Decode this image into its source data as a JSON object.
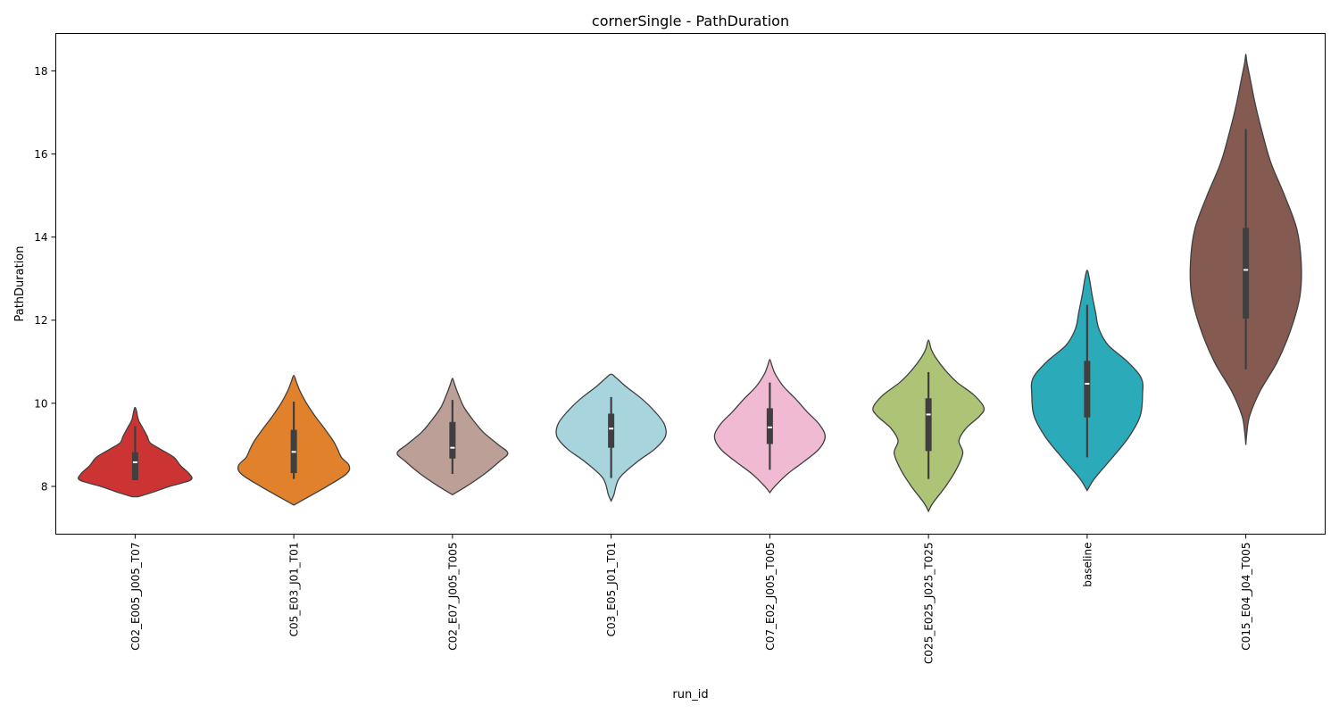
{
  "chart_data": {
    "type": "violin",
    "title": "cornerSingle - PathDuration",
    "xlabel": "run_id",
    "ylabel": "PathDuration",
    "ylim": [
      6.85,
      18.9
    ],
    "yticks": [
      8,
      10,
      12,
      14,
      16,
      18
    ],
    "grid": false,
    "legend": "none",
    "series": [
      {
        "category": "C02_E005_J005_T07",
        "color": "#cc3434",
        "box": {
          "min": 8.15,
          "q1": 8.15,
          "median": 8.58,
          "q3": 8.82,
          "max": 9.45
        },
        "range": [
          7.75,
          9.9
        ],
        "profile": [
          [
            7.75,
            0.05
          ],
          [
            7.85,
            0.3
          ],
          [
            8.0,
            0.62
          ],
          [
            8.15,
            1.0
          ],
          [
            8.3,
            0.98
          ],
          [
            8.5,
            0.82
          ],
          [
            8.7,
            0.7
          ],
          [
            8.9,
            0.45
          ],
          [
            9.05,
            0.27
          ],
          [
            9.2,
            0.22
          ],
          [
            9.4,
            0.14
          ],
          [
            9.6,
            0.06
          ],
          [
            9.9,
            0.0
          ]
        ]
      },
      {
        "category": "C05_E03_J01_T01",
        "color": "#e1812c",
        "box": {
          "min": 8.18,
          "q1": 8.32,
          "median": 8.83,
          "q3": 9.36,
          "max": 10.04
        },
        "range": [
          7.55,
          10.67
        ],
        "profile": [
          [
            7.55,
            0.0
          ],
          [
            7.7,
            0.2
          ],
          [
            8.0,
            0.6
          ],
          [
            8.3,
            0.95
          ],
          [
            8.5,
            1.0
          ],
          [
            8.7,
            0.86
          ],
          [
            8.9,
            0.79
          ],
          [
            9.1,
            0.71
          ],
          [
            9.4,
            0.55
          ],
          [
            9.7,
            0.38
          ],
          [
            10.0,
            0.23
          ],
          [
            10.3,
            0.11
          ],
          [
            10.5,
            0.05
          ],
          [
            10.67,
            0.0
          ]
        ]
      },
      {
        "category": "C02_E07_J005_T005",
        "color": "#bc9f96",
        "box": {
          "min": 8.3,
          "q1": 8.67,
          "median": 8.93,
          "q3": 9.55,
          "max": 10.08
        },
        "range": [
          7.8,
          10.6
        ],
        "profile": [
          [
            7.8,
            0.0
          ],
          [
            8.0,
            0.25
          ],
          [
            8.3,
            0.58
          ],
          [
            8.6,
            0.85
          ],
          [
            8.8,
            1.0
          ],
          [
            9.0,
            0.83
          ],
          [
            9.3,
            0.56
          ],
          [
            9.6,
            0.37
          ],
          [
            9.9,
            0.21
          ],
          [
            10.2,
            0.11
          ],
          [
            10.45,
            0.04
          ],
          [
            10.6,
            0.0
          ]
        ]
      },
      {
        "category": "C03_E05_J01_T01",
        "color": "#a8d4dd",
        "box": {
          "min": 8.2,
          "q1": 8.93,
          "median": 9.39,
          "q3": 9.75,
          "max": 10.15
        },
        "range": [
          7.65,
          10.7
        ],
        "profile": [
          [
            7.65,
            0.0
          ],
          [
            7.8,
            0.05
          ],
          [
            8.2,
            0.15
          ],
          [
            8.6,
            0.48
          ],
          [
            8.9,
            0.79
          ],
          [
            9.2,
            0.98
          ],
          [
            9.5,
            0.96
          ],
          [
            9.8,
            0.79
          ],
          [
            10.1,
            0.56
          ],
          [
            10.4,
            0.27
          ],
          [
            10.6,
            0.1
          ],
          [
            10.7,
            0.0
          ]
        ]
      },
      {
        "category": "C07_E02_J005_T005",
        "color": "#f0bbd2",
        "box": {
          "min": 8.4,
          "q1": 9.02,
          "median": 9.42,
          "q3": 9.88,
          "max": 10.5
        },
        "range": [
          7.85,
          11.05
        ],
        "profile": [
          [
            7.85,
            0.0
          ],
          [
            8.0,
            0.09
          ],
          [
            8.3,
            0.32
          ],
          [
            8.6,
            0.62
          ],
          [
            8.9,
            0.89
          ],
          [
            9.2,
            1.0
          ],
          [
            9.5,
            0.89
          ],
          [
            9.8,
            0.67
          ],
          [
            10.1,
            0.47
          ],
          [
            10.4,
            0.25
          ],
          [
            10.7,
            0.1
          ],
          [
            10.9,
            0.04
          ],
          [
            11.05,
            0.0
          ]
        ]
      },
      {
        "category": "C025_E025_J025_T025",
        "color": "#adc376",
        "box": {
          "min": 8.18,
          "q1": 8.85,
          "median": 9.73,
          "q3": 10.12,
          "max": 10.75
        },
        "range": [
          7.4,
          11.52
        ],
        "profile": [
          [
            7.4,
            0.0
          ],
          [
            7.6,
            0.08
          ],
          [
            8.0,
            0.31
          ],
          [
            8.4,
            0.5
          ],
          [
            8.8,
            0.62
          ],
          [
            9.1,
            0.55
          ],
          [
            9.4,
            0.68
          ],
          [
            9.7,
            0.93
          ],
          [
            9.9,
            1.0
          ],
          [
            10.2,
            0.82
          ],
          [
            10.5,
            0.52
          ],
          [
            10.8,
            0.3
          ],
          [
            11.1,
            0.13
          ],
          [
            11.3,
            0.05
          ],
          [
            11.52,
            0.0
          ]
        ]
      },
      {
        "category": "baseline",
        "color": "#2baab9",
        "box": {
          "min": 8.7,
          "q1": 9.66,
          "median": 10.47,
          "q3": 11.02,
          "max": 12.37
        },
        "range": [
          7.9,
          13.2
        ],
        "profile": [
          [
            7.9,
            0.0
          ],
          [
            8.2,
            0.14
          ],
          [
            8.7,
            0.46
          ],
          [
            9.2,
            0.76
          ],
          [
            9.7,
            0.96
          ],
          [
            10.2,
            1.0
          ],
          [
            10.6,
            0.98
          ],
          [
            11.0,
            0.73
          ],
          [
            11.4,
            0.38
          ],
          [
            11.8,
            0.21
          ],
          [
            12.2,
            0.15
          ],
          [
            12.6,
            0.09
          ],
          [
            13.0,
            0.04
          ],
          [
            13.2,
            0.0
          ]
        ]
      },
      {
        "category": "C015_E04_J04_T005",
        "color": "#855a51",
        "box": {
          "min": 10.82,
          "q1": 12.04,
          "median": 13.21,
          "q3": 14.22,
          "max": 16.6
        },
        "range": [
          9.0,
          18.4
        ],
        "profile": [
          [
            9.0,
            0.0
          ],
          [
            9.3,
            0.02
          ],
          [
            9.7,
            0.07
          ],
          [
            10.3,
            0.26
          ],
          [
            11.0,
            0.57
          ],
          [
            11.8,
            0.82
          ],
          [
            12.6,
            0.98
          ],
          [
            13.4,
            1.0
          ],
          [
            14.2,
            0.92
          ],
          [
            15.0,
            0.7
          ],
          [
            15.8,
            0.45
          ],
          [
            16.6,
            0.28
          ],
          [
            17.2,
            0.17
          ],
          [
            17.8,
            0.08
          ],
          [
            18.2,
            0.02
          ],
          [
            18.4,
            0.0
          ]
        ]
      }
    ]
  }
}
